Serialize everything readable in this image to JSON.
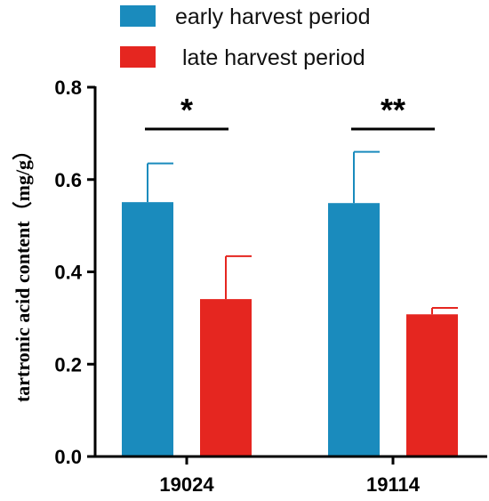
{
  "chart_data": {
    "type": "bar",
    "categories": [
      "19024",
      "19114"
    ],
    "series": [
      {
        "name": "early harvest period",
        "color": "#1a8bbd",
        "values": [
          0.551,
          0.549
        ],
        "errors": [
          0.084,
          0.111
        ]
      },
      {
        "name": "late harvest period",
        "color": "#e52620",
        "values": [
          0.341,
          0.308
        ],
        "errors": [
          0.093,
          0.014
        ]
      }
    ],
    "ylabel": "tartronic acid content（mg/g）",
    "xlabel": "",
    "ylim": [
      0,
      0.8
    ],
    "yticks": [
      "0.0",
      "0.2",
      "0.4",
      "0.6",
      "0.8"
    ],
    "significance": [
      "*",
      "**"
    ],
    "legend_position": "top",
    "grid": false
  }
}
